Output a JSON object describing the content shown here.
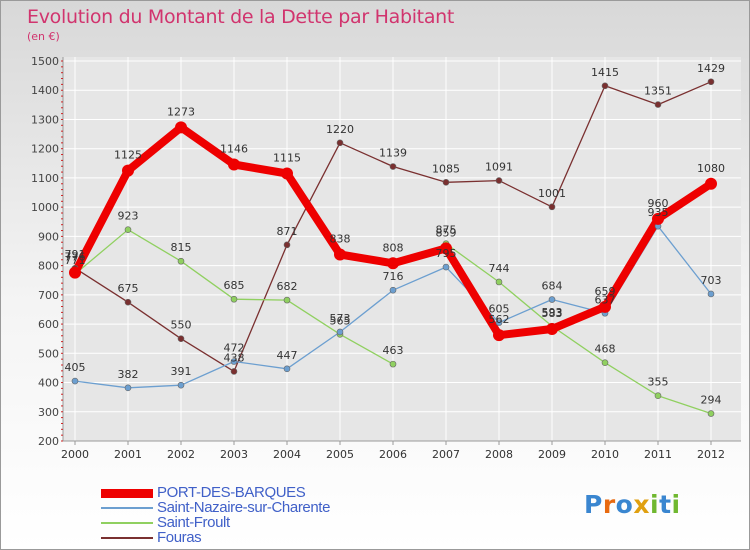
{
  "title": "Evolution du Montant de la Dette par Habitant",
  "subtitle": "(en €)",
  "colors": {
    "title": "#d1346e",
    "axis_text": "#444444",
    "grid": "#ffffff",
    "legend_text": "#4060c8"
  },
  "chart_data": {
    "type": "line",
    "title": "Evolution du Montant de la Dette par Habitant",
    "ylabel": "(en €)",
    "xlabel": "",
    "x": [
      "2000",
      "2001",
      "2002",
      "2003",
      "2004",
      "2005",
      "2006",
      "2007",
      "2008",
      "2009",
      "2010",
      "2011",
      "2012"
    ],
    "ylim": [
      200,
      1500
    ],
    "yticks": [
      200,
      300,
      400,
      500,
      600,
      700,
      800,
      900,
      1000,
      1100,
      1200,
      1300,
      1400,
      1500
    ],
    "grid": true,
    "legend": "bottom-left",
    "series": [
      {
        "name": "PORT-DES-BARQUES",
        "color": "#ee0000",
        "values": [
          776,
          1125,
          1273,
          1146,
          1115,
          838,
          808,
          859,
          562,
          583,
          659,
          960,
          1080
        ],
        "labels": [
          "776",
          "1125",
          "1273",
          "1146",
          "1115",
          "838",
          "808",
          "859",
          "562",
          "583",
          "659",
          "960",
          "1080"
        ]
      },
      {
        "name": "Saint-Nazaire-sur-Charente",
        "color": "#6c9fd0",
        "values": [
          405,
          382,
          391,
          472,
          447,
          573,
          716,
          795,
          605,
          684,
          637,
          935,
          703
        ],
        "labels": [
          "405",
          "382",
          "391",
          "472",
          "447",
          "573",
          "716",
          "795",
          "605",
          "684",
          "637",
          "935",
          "703"
        ]
      },
      {
        "name": "Saint-Froult",
        "color": "#90d060",
        "values": [
          771,
          923,
          815,
          685,
          682,
          565,
          463,
          875,
          744,
          593,
          468,
          355,
          294
        ],
        "labels": [
          "771",
          "923",
          "815",
          "685",
          "682",
          "565",
          "463",
          "875",
          "744",
          "593",
          "468",
          "355",
          "294"
        ],
        "breaks_after": [
          6
        ]
      },
      {
        "name": "Fouras",
        "color": "#7a3030",
        "values": [
          791,
          675,
          550,
          438,
          871,
          1220,
          1139,
          1085,
          1091,
          1001,
          1415,
          1351,
          1429
        ],
        "labels": [
          "791",
          "675",
          "550",
          "438",
          "871",
          "1220",
          "1139",
          "1085",
          "1091",
          "1001",
          "1415",
          "1351",
          "1429"
        ]
      }
    ]
  },
  "legend": {
    "items": [
      {
        "label": "PORT-DES-BARQUES"
      },
      {
        "label": "Saint-Nazaire-sur-Charente"
      },
      {
        "label": "Saint-Froult"
      },
      {
        "label": "Fouras"
      }
    ]
  },
  "logo": {
    "text": "Proxiti",
    "letter_colors": [
      "#3a86d0",
      "#e86a10",
      "#3a86d0",
      "#e0a010",
      "#70b830",
      "#3a86d0",
      "#70b830"
    ]
  }
}
